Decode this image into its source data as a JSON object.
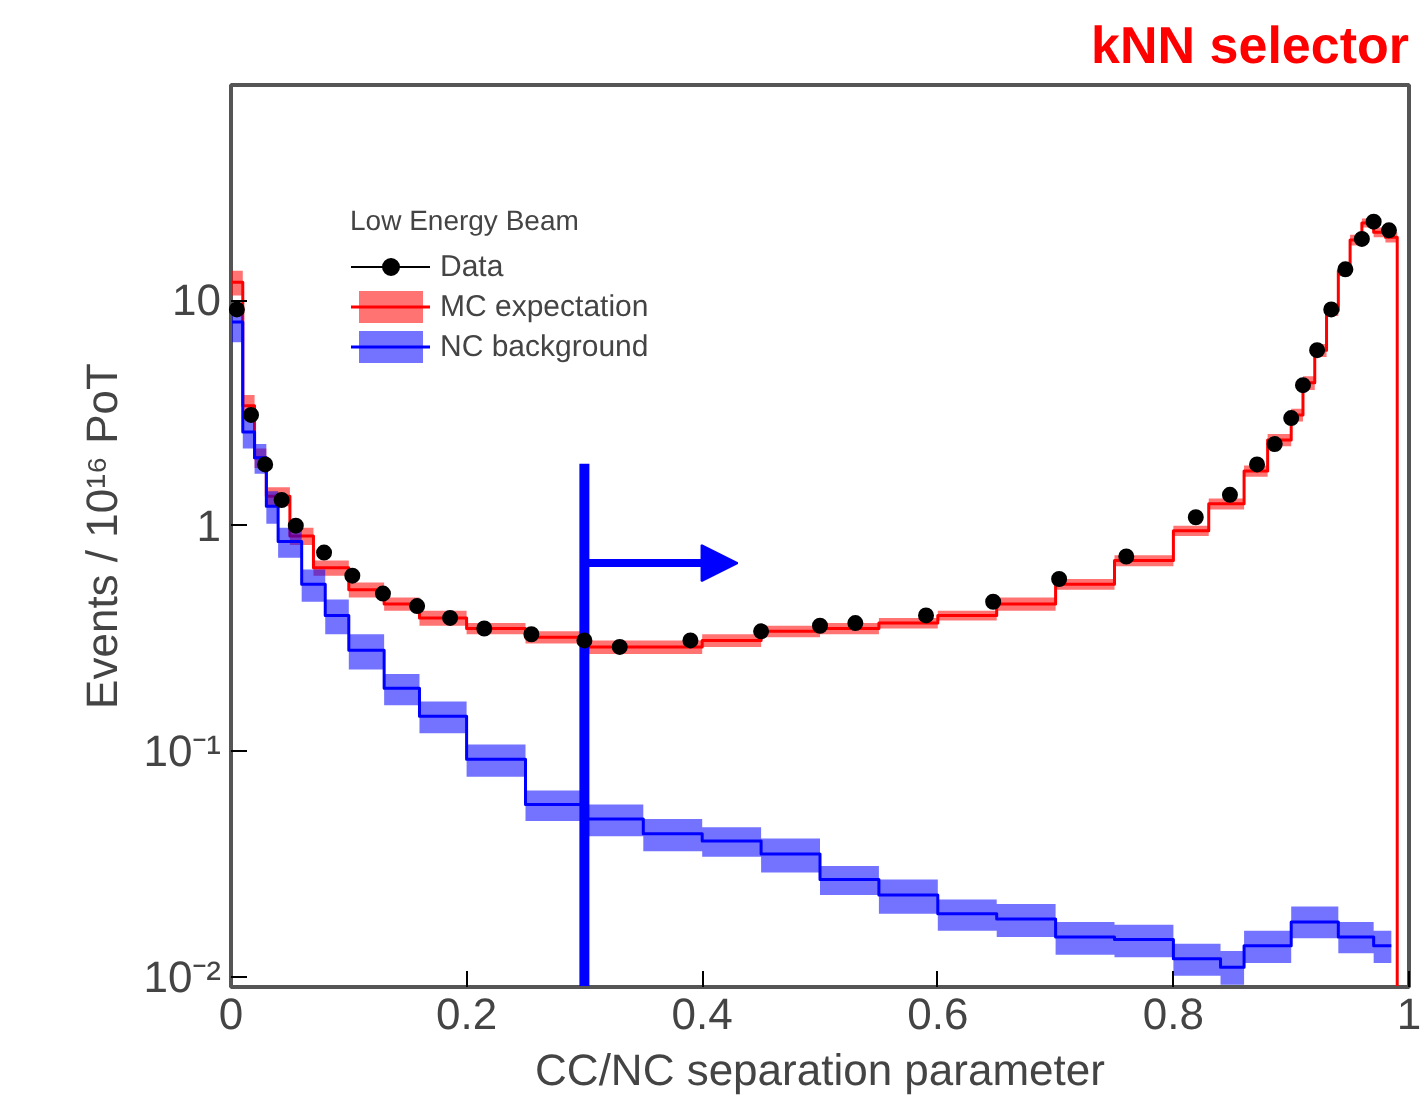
{
  "chart_data": {
    "type": "step",
    "title": "kNN selector",
    "xlabel": "CC/NC separation parameter",
    "ylabel": "Events / 10¹⁶ PoT",
    "legend_title": "Low Energy Beam",
    "log": "y",
    "grid": false,
    "legend": "top left",
    "xlim": [
      0,
      1
    ],
    "ylim": [
      0.009,
      90
    ],
    "xticks": [
      0,
      0.2,
      0.4,
      0.6,
      0.8,
      1
    ],
    "yticks": [
      {
        "value": 0.01,
        "label": "10⁻²"
      },
      {
        "value": 0.1,
        "label": "10⁻¹"
      },
      1,
      10
    ],
    "series": [
      {
        "name": "MC expectation",
        "color": "#ff0000",
        "x": [
          0,
          0.01,
          0.02,
          0.03,
          0.05,
          0.07,
          0.1,
          0.13,
          0.16,
          0.2,
          0.25,
          0.3,
          0.35,
          0.4,
          0.45,
          0.5,
          0.55,
          0.6,
          0.65,
          0.7,
          0.75,
          0.8,
          0.83,
          0.86,
          0.88,
          0.9,
          0.91,
          0.92,
          0.93,
          0.94,
          0.95,
          0.96,
          0.97,
          0.98,
          0.99
        ],
        "values": [
          12,
          3.4,
          2.0,
          1.35,
          0.9,
          0.65,
          0.52,
          0.45,
          0.39,
          0.35,
          0.32,
          0.29,
          0.29,
          0.31,
          0.34,
          0.35,
          0.37,
          0.4,
          0.45,
          0.55,
          0.7,
          0.95,
          1.25,
          1.75,
          2.4,
          3.1,
          4.3,
          6.0,
          9.0,
          13.5,
          18.5,
          22,
          20,
          19,
          0.009
        ],
        "lower": [
          10.5,
          3.0,
          1.8,
          1.22,
          0.82,
          0.6,
          0.48,
          0.42,
          0.36,
          0.33,
          0.3,
          0.27,
          0.27,
          0.29,
          0.32,
          0.33,
          0.35,
          0.38,
          0.42,
          0.52,
          0.66,
          0.9,
          1.18,
          1.65,
          2.25,
          2.9,
          4.0,
          5.6,
          8.5,
          12.8,
          17.5,
          21,
          19,
          18,
          0.009
        ],
        "upper": [
          13.5,
          3.8,
          2.2,
          1.48,
          0.98,
          0.7,
          0.56,
          0.48,
          0.42,
          0.37,
          0.34,
          0.31,
          0.31,
          0.33,
          0.36,
          0.37,
          0.39,
          0.42,
          0.48,
          0.58,
          0.74,
          1.0,
          1.32,
          1.85,
          2.55,
          3.3,
          4.6,
          6.4,
          9.5,
          14.2,
          19.5,
          23,
          21,
          20,
          0.009
        ]
      },
      {
        "name": "NC background",
        "color": "#0000ff",
        "x": [
          0,
          0.01,
          0.02,
          0.03,
          0.04,
          0.06,
          0.08,
          0.1,
          0.13,
          0.16,
          0.2,
          0.25,
          0.3,
          0.35,
          0.4,
          0.45,
          0.5,
          0.55,
          0.6,
          0.65,
          0.7,
          0.75,
          0.8,
          0.84,
          0.86,
          0.9,
          0.94,
          0.97,
          0.985
        ],
        "values": [
          8,
          2.6,
          2.0,
          1.22,
          0.85,
          0.55,
          0.4,
          0.28,
          0.19,
          0.143,
          0.092,
          0.058,
          0.05,
          0.043,
          0.04,
          0.035,
          0.027,
          0.023,
          0.019,
          0.018,
          0.015,
          0.0146,
          0.012,
          0.011,
          0.0137,
          0.0175,
          0.015,
          0.0137,
          0.0137
        ],
        "lower": [
          6.5,
          2.2,
          1.7,
          1.02,
          0.72,
          0.46,
          0.33,
          0.23,
          0.16,
          0.12,
          0.077,
          0.049,
          0.042,
          0.036,
          0.034,
          0.029,
          0.023,
          0.019,
          0.016,
          0.015,
          0.0125,
          0.0122,
          0.0101,
          0.0092,
          0.0115,
          0.0148,
          0.0127,
          0.0115,
          0.0115
        ],
        "upper": [
          9.5,
          3.0,
          2.3,
          1.42,
          0.98,
          0.64,
          0.47,
          0.33,
          0.22,
          0.166,
          0.107,
          0.067,
          0.058,
          0.05,
          0.046,
          0.041,
          0.031,
          0.027,
          0.022,
          0.021,
          0.0175,
          0.017,
          0.014,
          0.013,
          0.016,
          0.0205,
          0.0175,
          0.016,
          0.016
        ]
      },
      {
        "name": "Data",
        "type": "scatter",
        "color": "#000000",
        "marker": "circle",
        "x": [
          0.005,
          0.017,
          0.029,
          0.043,
          0.055,
          0.079,
          0.103,
          0.129,
          0.158,
          0.186,
          0.215,
          0.255,
          0.3,
          0.33,
          0.39,
          0.45,
          0.5,
          0.53,
          0.59,
          0.647,
          0.703,
          0.76,
          0.819,
          0.848,
          0.871,
          0.886,
          0.9,
          0.91,
          0.922,
          0.934,
          0.946,
          0.96,
          0.97,
          0.983
        ],
        "values": [
          9.1,
          3.1,
          1.87,
          1.3,
          1.0,
          0.76,
          0.6,
          0.5,
          0.44,
          0.39,
          0.35,
          0.33,
          0.31,
          0.29,
          0.31,
          0.34,
          0.36,
          0.37,
          0.4,
          0.46,
          0.58,
          0.73,
          1.09,
          1.37,
          1.87,
          2.3,
          3.0,
          4.2,
          6.0,
          9.1,
          13.7,
          18.7,
          22.3,
          20.4
        ]
      }
    ],
    "ref_lines": [
      {
        "axis": "x",
        "value": 0.3,
        "color": "#0000ff"
      }
    ]
  }
}
